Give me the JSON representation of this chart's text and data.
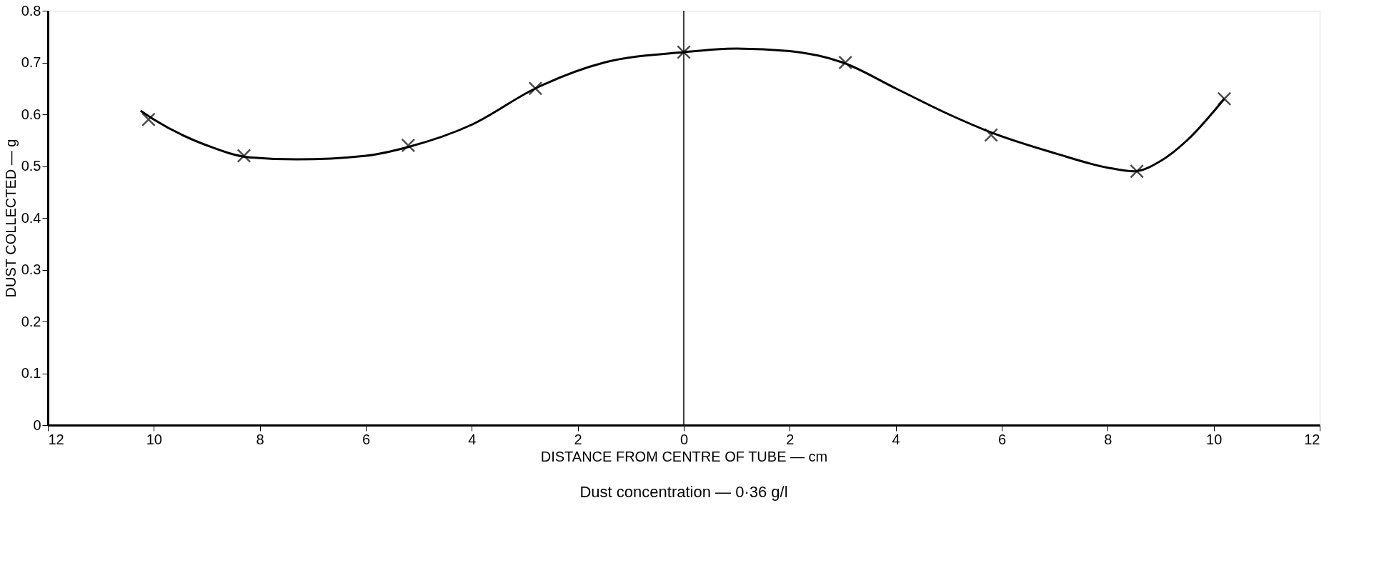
{
  "chart_data": {
    "type": "scatter",
    "xlabel": "DISTANCE FROM CENTRE OF TUBE — cm",
    "ylabel": "DUST COLLECTED — g",
    "annotations": [
      "Dust concentration — 0·36 g/l"
    ],
    "xlim": [
      -12,
      12
    ],
    "ylim": [
      0,
      0.8
    ],
    "xticks": [
      {
        "value": -12,
        "label": "12"
      },
      {
        "value": -10,
        "label": "10"
      },
      {
        "value": -8,
        "label": "8"
      },
      {
        "value": -6,
        "label": "6"
      },
      {
        "value": -4,
        "label": "4"
      },
      {
        "value": -2,
        "label": "2"
      },
      0,
      2,
      4,
      6,
      8,
      10,
      12
    ],
    "yticks": [
      0,
      0.1,
      0.2,
      0.3,
      0.4,
      0.5,
      0.6,
      0.7,
      0.8
    ],
    "grid": false,
    "ref_lines": [
      {
        "axis": "x",
        "value": 0,
        "color": "#000000"
      }
    ],
    "series": [
      {
        "type": "line",
        "color": "#000000",
        "marker": "none",
        "line_style": "solid",
        "x": [
          -10.25,
          -10,
          -9,
          -8.2,
          -7.3,
          -6,
          -5.2,
          -4,
          -2.8,
          -1.5,
          0,
          1,
          2,
          3,
          4,
          5,
          5.8,
          7,
          8,
          8.5,
          9,
          9.5,
          10.2
        ],
        "values": [
          0.607,
          0.59,
          0.54,
          0.517,
          0.513,
          0.52,
          0.537,
          0.58,
          0.65,
          0.7,
          0.72,
          0.727,
          0.722,
          0.7,
          0.65,
          0.6,
          0.565,
          0.525,
          0.497,
          0.49,
          0.51,
          0.55,
          0.63
        ]
      },
      {
        "color": "#000000",
        "marker": "cross",
        "x": [
          -10.1,
          -8.3,
          -5.2,
          -2.8,
          0,
          3.05,
          5.8,
          8.55,
          10.2
        ],
        "values": [
          0.59,
          0.52,
          0.54,
          0.65,
          0.72,
          0.7,
          0.56,
          0.49,
          0.63
        ]
      }
    ]
  }
}
